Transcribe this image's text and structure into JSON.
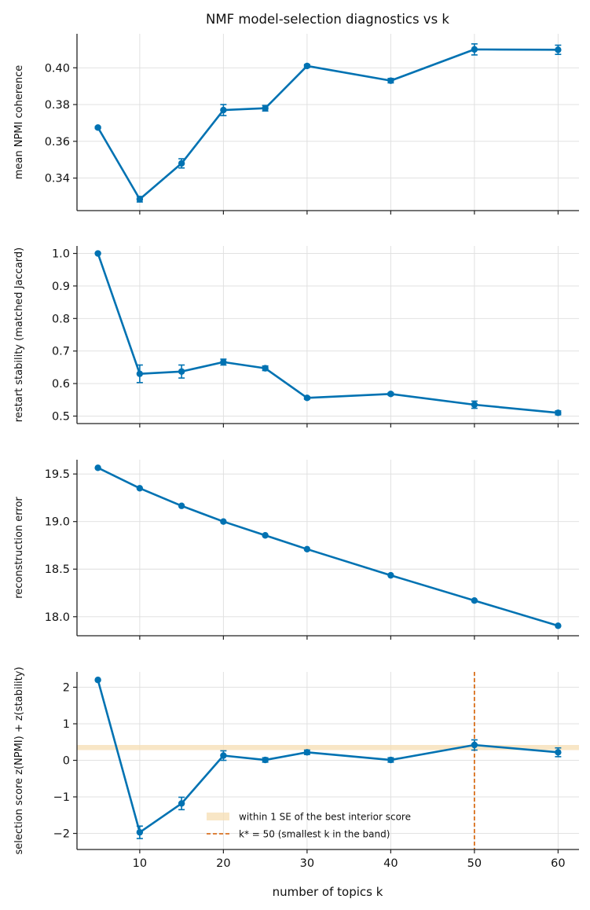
{
  "chart_data": {
    "title": "NMF model-selection diagnostics vs k",
    "xlabel": "number of topics k",
    "type": "line",
    "colors": {
      "series": "#0072b2",
      "kstar": "#d55e00",
      "band": "#f5deb3",
      "grid": "#dedede"
    },
    "x_ticks": [
      10,
      20,
      30,
      40,
      50,
      60
    ],
    "x": [
      5,
      10,
      15,
      20,
      25,
      30,
      40,
      50,
      60
    ],
    "xlim": [
      2.5,
      62.5
    ],
    "grid": true,
    "panels": [
      {
        "type": "line",
        "ylabel": "mean NPMI coherence",
        "ylim": [
          0.3223,
          0.4185
        ],
        "y_ticks": [
          0.34,
          0.36,
          0.38,
          0.4
        ],
        "y_tick_labels": [
          "0.34",
          "0.36",
          "0.38",
          "0.40"
        ],
        "values": [
          0.3675,
          0.3285,
          0.348,
          0.377,
          0.378,
          0.401,
          0.393,
          0.41,
          0.4098
        ],
        "errors": [
          0.0005,
          0.0015,
          0.0025,
          0.003,
          0.0015,
          0.0008,
          0.0012,
          0.003,
          0.0025
        ]
      },
      {
        "type": "line",
        "ylabel": "restart stability (matched Jaccard)",
        "ylim": [
          0.477,
          1.023
        ],
        "y_ticks": [
          0.5,
          0.6,
          0.7,
          0.8,
          0.9,
          1.0
        ],
        "y_tick_labels": [
          "0.5",
          "0.6",
          "0.7",
          "0.8",
          "0.9",
          "1.0"
        ],
        "values": [
          1.0,
          0.63,
          0.637,
          0.666,
          0.647,
          0.556,
          0.568,
          0.535,
          0.51
        ],
        "errors": [
          0,
          0.027,
          0.02,
          0.009,
          0.007,
          0.004,
          0.004,
          0.011,
          0.006
        ]
      },
      {
        "type": "line",
        "ylabel": "reconstruction error",
        "ylim": [
          17.8,
          19.65
        ],
        "y_ticks": [
          18.0,
          18.5,
          19.0,
          19.5
        ],
        "y_tick_labels": [
          "18.0",
          "18.5",
          "19.0",
          "19.5"
        ],
        "values": [
          19.565,
          19.35,
          19.165,
          19.0,
          18.855,
          18.71,
          18.435,
          18.17,
          17.905
        ],
        "errors": [
          0,
          0,
          0,
          0,
          0,
          0,
          0,
          0,
          0
        ]
      },
      {
        "type": "line",
        "ylabel": "selection score  z(NPMI) + z(stability)",
        "ylim": [
          -2.44,
          2.42
        ],
        "y_ticks": [
          -2,
          -1,
          0,
          1,
          2
        ],
        "y_tick_labels": [
          "−2",
          "−1",
          "0",
          "1",
          "2"
        ],
        "values": [
          2.2,
          -1.97,
          -1.18,
          0.13,
          0.01,
          0.22,
          0.01,
          0.42,
          0.22
        ],
        "errors": [
          0,
          0.17,
          0.17,
          0.13,
          0.06,
          0.06,
          0.06,
          0.14,
          0.12
        ],
        "band": [
          0.28,
          0.42
        ],
        "vline_x": 50,
        "legend": [
          {
            "label": "within 1 SE of the best interior score"
          },
          {
            "label": "k* = 50 (smallest k in the band)"
          }
        ]
      }
    ]
  }
}
